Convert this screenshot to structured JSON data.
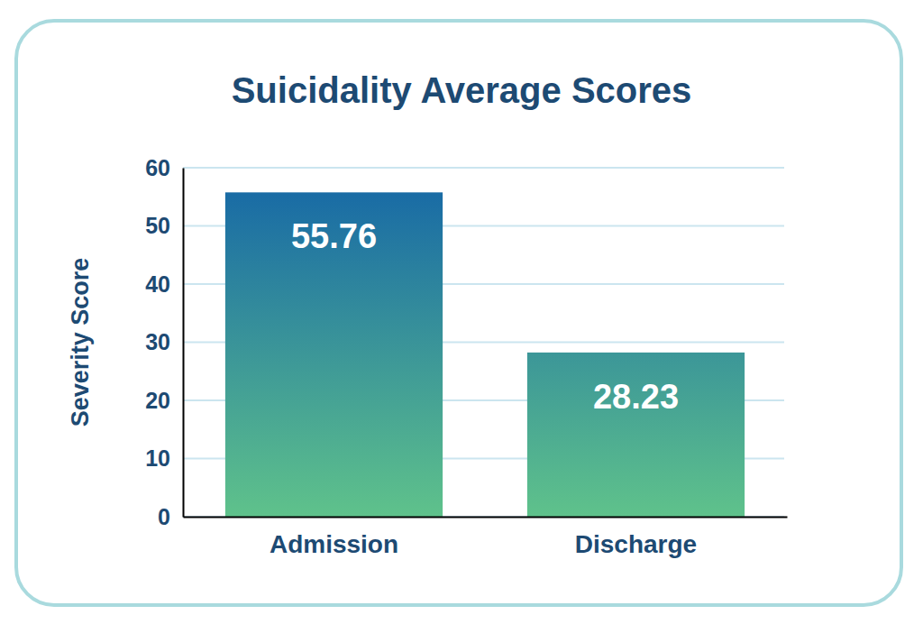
{
  "chart_data": {
    "type": "bar",
    "title": "Suicidality Average Scores",
    "y_label": "Severity Score",
    "categories": [
      "Admission",
      "Discharge"
    ],
    "values": [
      55.76,
      28.23
    ],
    "ylim": [
      0,
      60
    ],
    "yticks": [
      0,
      10,
      20,
      30,
      40,
      50,
      60
    ],
    "grid": true,
    "data_labels": true
  }
}
